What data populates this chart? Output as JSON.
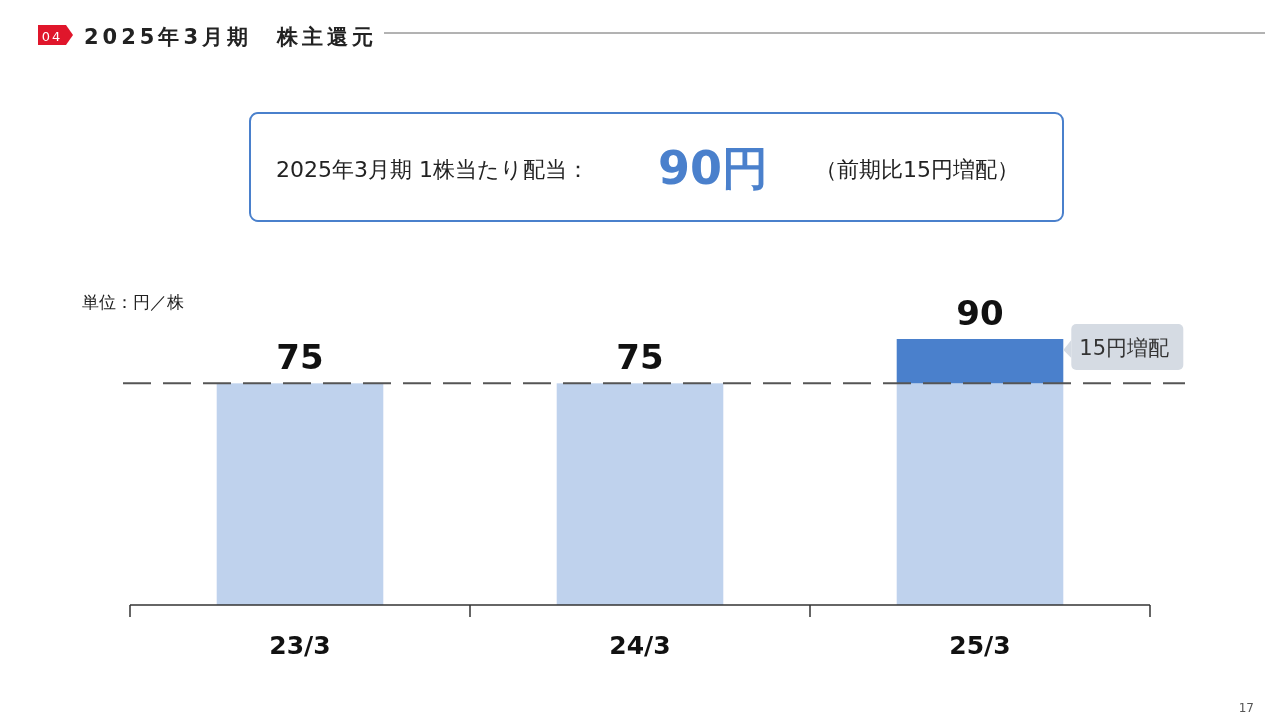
{
  "chart_data": {
    "type": "bar",
    "stacked": true,
    "title": "2025年3月期　株主還元",
    "ylabel": "単位：円／株",
    "categories": [
      "23/3",
      "24/3",
      "25/3"
    ],
    "series": [
      {
        "color": "#bfd2ed",
        "values": [
          75,
          75,
          75
        ],
        "value_labels": [
          "75",
          "75",
          null
        ]
      },
      {
        "color": "#4a80cc",
        "values": [
          null,
          null,
          15
        ],
        "value_labels": [
          null,
          null,
          "15円増配"
        ]
      }
    ],
    "totals": [
      null,
      null,
      "90"
    ],
    "ref_lines": [
      {
        "axis": "y",
        "value": 75,
        "color": "#555555",
        "line_style": "dashed"
      }
    ],
    "annotations": [
      "04",
      "2025年3月期  1株当たり配当：",
      "90円",
      "（前期比15円増配）",
      "17"
    ]
  }
}
